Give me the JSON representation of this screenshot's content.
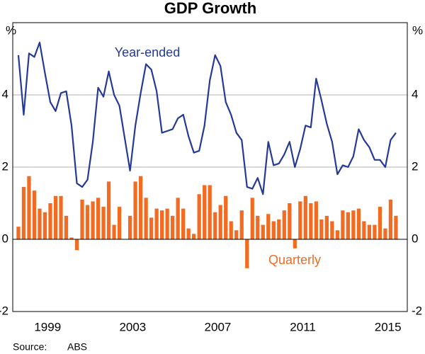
{
  "chart_data": {
    "type": "bar_line",
    "title": "GDP Growth",
    "y_unit": "%",
    "x": [
      1998.125,
      1998.375,
      1998.625,
      1998.875,
      1999.125,
      1999.375,
      1999.625,
      1999.875,
      2000.125,
      2000.375,
      2000.625,
      2000.875,
      2001.125,
      2001.375,
      2001.625,
      2001.875,
      2002.125,
      2002.375,
      2002.625,
      2002.875,
      2003.125,
      2003.375,
      2003.625,
      2003.875,
      2004.125,
      2004.375,
      2004.625,
      2004.875,
      2005.125,
      2005.375,
      2005.625,
      2005.875,
      2006.125,
      2006.375,
      2006.625,
      2006.875,
      2007.125,
      2007.375,
      2007.625,
      2007.875,
      2008.125,
      2008.375,
      2008.625,
      2008.875,
      2009.125,
      2009.375,
      2009.625,
      2009.875,
      2010.125,
      2010.375,
      2010.625,
      2010.875,
      2011.125,
      2011.375,
      2011.625,
      2011.875,
      2012.125,
      2012.375,
      2012.625,
      2012.875,
      2013.125,
      2013.375,
      2013.625,
      2013.875,
      2014.125,
      2014.375,
      2014.625,
      2014.875,
      2015.125,
      2015.375,
      2015.625,
      2015.875
    ],
    "series": [
      {
        "name": "Quarterly",
        "type": "bar",
        "color": "#f26b21",
        "values": [
          0.35,
          1.45,
          1.75,
          1.35,
          0.85,
          0.75,
          1.0,
          1.2,
          1.2,
          0.65,
          0.05,
          -0.3,
          1.1,
          0.95,
          1.05,
          1.15,
          0.9,
          1.6,
          0.4,
          0.9,
          0.0,
          0.65,
          1.6,
          1.75,
          1.15,
          0.6,
          0.85,
          0.8,
          0.85,
          0.65,
          1.15,
          0.85,
          0.3,
          0.15,
          1.25,
          1.5,
          1.5,
          0.75,
          0.95,
          1.2,
          0.5,
          0.25,
          0.8,
          -0.8,
          1.15,
          0.65,
          0.4,
          0.7,
          0.5,
          0.55,
          0.8,
          1.0,
          -0.25,
          1.05,
          1.2,
          1.0,
          1.05,
          0.55,
          0.65,
          0.5,
          0.25,
          0.8,
          0.75,
          0.8,
          0.85,
          0.5,
          0.4,
          0.4,
          0.9,
          0.3,
          1.1,
          0.65
        ]
      },
      {
        "name": "Year-ended",
        "type": "line",
        "color": "#253a97",
        "values": [
          5.1,
          3.45,
          5.15,
          5.05,
          5.45,
          4.6,
          3.8,
          3.55,
          4.05,
          4.1,
          3.15,
          1.55,
          1.45,
          1.65,
          2.7,
          4.2,
          3.95,
          4.65,
          4.0,
          3.7,
          2.8,
          1.9,
          3.15,
          4.05,
          4.85,
          4.7,
          4.1,
          2.95,
          3.0,
          3.05,
          3.35,
          3.45,
          2.85,
          2.4,
          2.45,
          3.15,
          4.4,
          5.1,
          4.8,
          3.8,
          3.45,
          2.95,
          2.75,
          1.45,
          1.4,
          1.7,
          1.25,
          2.7,
          2.05,
          2.1,
          2.35,
          2.7,
          2.0,
          2.5,
          3.15,
          3.1,
          4.45,
          3.85,
          3.2,
          2.7,
          1.8,
          2.05,
          2.0,
          2.3,
          3.05,
          2.75,
          2.55,
          2.2,
          2.2,
          2.0,
          2.75,
          2.95
        ]
      }
    ],
    "xlim": [
      1997.86,
      2016.41
    ],
    "xticks": [
      {
        "value": 1999.5,
        "label": "1999"
      },
      {
        "value": 2003.5,
        "label": "2003"
      },
      {
        "value": 2007.5,
        "label": "2007"
      },
      {
        "value": 2011.5,
        "label": "2011"
      },
      {
        "value": 2015.5,
        "label": "2015"
      }
    ],
    "ylim": [
      -2,
      6
    ],
    "yticks": [
      -2,
      0,
      2,
      4
    ],
    "grid": true,
    "source_label": "Source:",
    "source": "ABS"
  }
}
